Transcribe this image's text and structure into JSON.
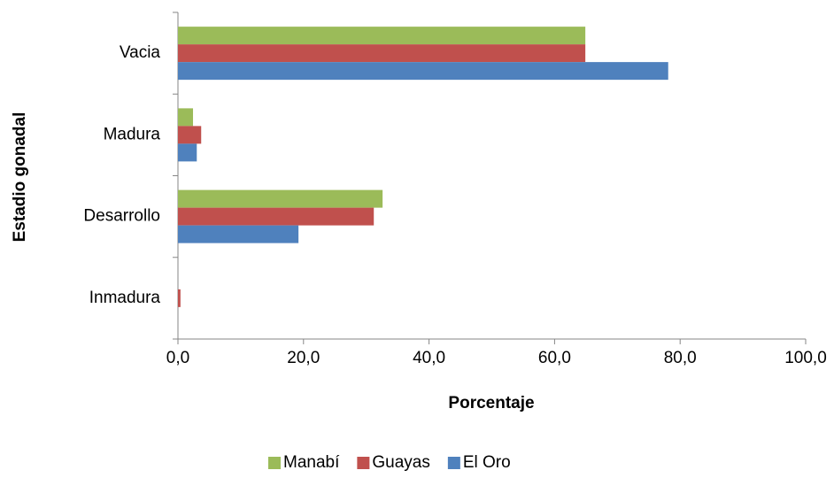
{
  "chart_data": {
    "type": "barh",
    "y_label": "Estadio gonadal",
    "x_label": "Porcentaje",
    "categories": [
      "Vacia",
      "Madura",
      "Desarrollo",
      "Inmadura"
    ],
    "series": [
      {
        "name": "Manabí",
        "color": "#9bbb59",
        "values": [
          64.9,
          2.4,
          32.6,
          0
        ]
      },
      {
        "name": "Guayas",
        "color": "#c0504d",
        "values": [
          64.9,
          3.7,
          31.2,
          0.4
        ]
      },
      {
        "name": "El Oro",
        "color": "#4f81bd",
        "values": [
          78.1,
          3.0,
          19.2,
          0
        ]
      }
    ],
    "xlim": [
      0,
      100
    ],
    "xticks": [
      {
        "value": 0,
        "label": "0,0"
      },
      {
        "value": 20,
        "label": "20,0"
      },
      {
        "value": 40,
        "label": "40,0"
      },
      {
        "value": 60,
        "label": "60,0"
      },
      {
        "value": 80,
        "label": "80,0"
      },
      {
        "value": 100,
        "label": "100,0"
      }
    ],
    "legend": "bottom"
  }
}
